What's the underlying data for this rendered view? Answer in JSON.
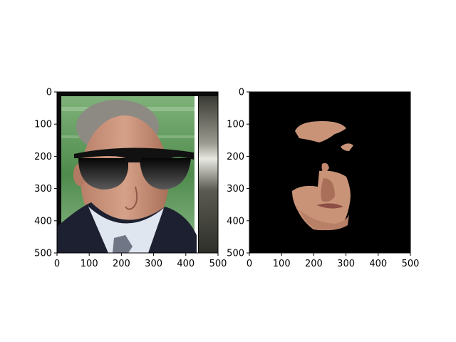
{
  "chart_data": [
    {
      "type": "image",
      "panel": "left",
      "image_content": "portrait-face-with-sunglasses-overlay",
      "xlim": [
        0,
        500
      ],
      "ylim": [
        500,
        0
      ],
      "xticks": [
        0,
        100,
        200,
        300,
        400,
        500
      ],
      "yticks": [
        0,
        100,
        200,
        300,
        400,
        500
      ],
      "xticklabels": [
        "0",
        "100",
        "200",
        "300",
        "400",
        "500"
      ],
      "yticklabels": [
        "0",
        "100",
        "200",
        "300",
        "400",
        "500"
      ],
      "grid": false,
      "title": "",
      "xlabel": "",
      "ylabel": ""
    },
    {
      "type": "image",
      "panel": "right",
      "image_content": "skin-mask-on-black-background",
      "xlim": [
        0,
        500
      ],
      "ylim": [
        500,
        0
      ],
      "xticks": [
        0,
        100,
        200,
        300,
        400,
        500
      ],
      "yticks": [
        0,
        100,
        200,
        300,
        400,
        500
      ],
      "xticklabels": [
        "0",
        "100",
        "200",
        "300",
        "400",
        "500"
      ],
      "yticklabels": [
        "0",
        "100",
        "200",
        "300",
        "400",
        "500"
      ],
      "grid": false,
      "title": "",
      "xlabel": "",
      "ylabel": ""
    }
  ],
  "colors": {
    "background": "#ffffff",
    "green_wall": "#5f9a58",
    "skin": "#c99378",
    "suit": "#1d2030",
    "shirt": "#dfe6ef",
    "lens": "#1a1a1a",
    "mask_bg": "#000000"
  }
}
